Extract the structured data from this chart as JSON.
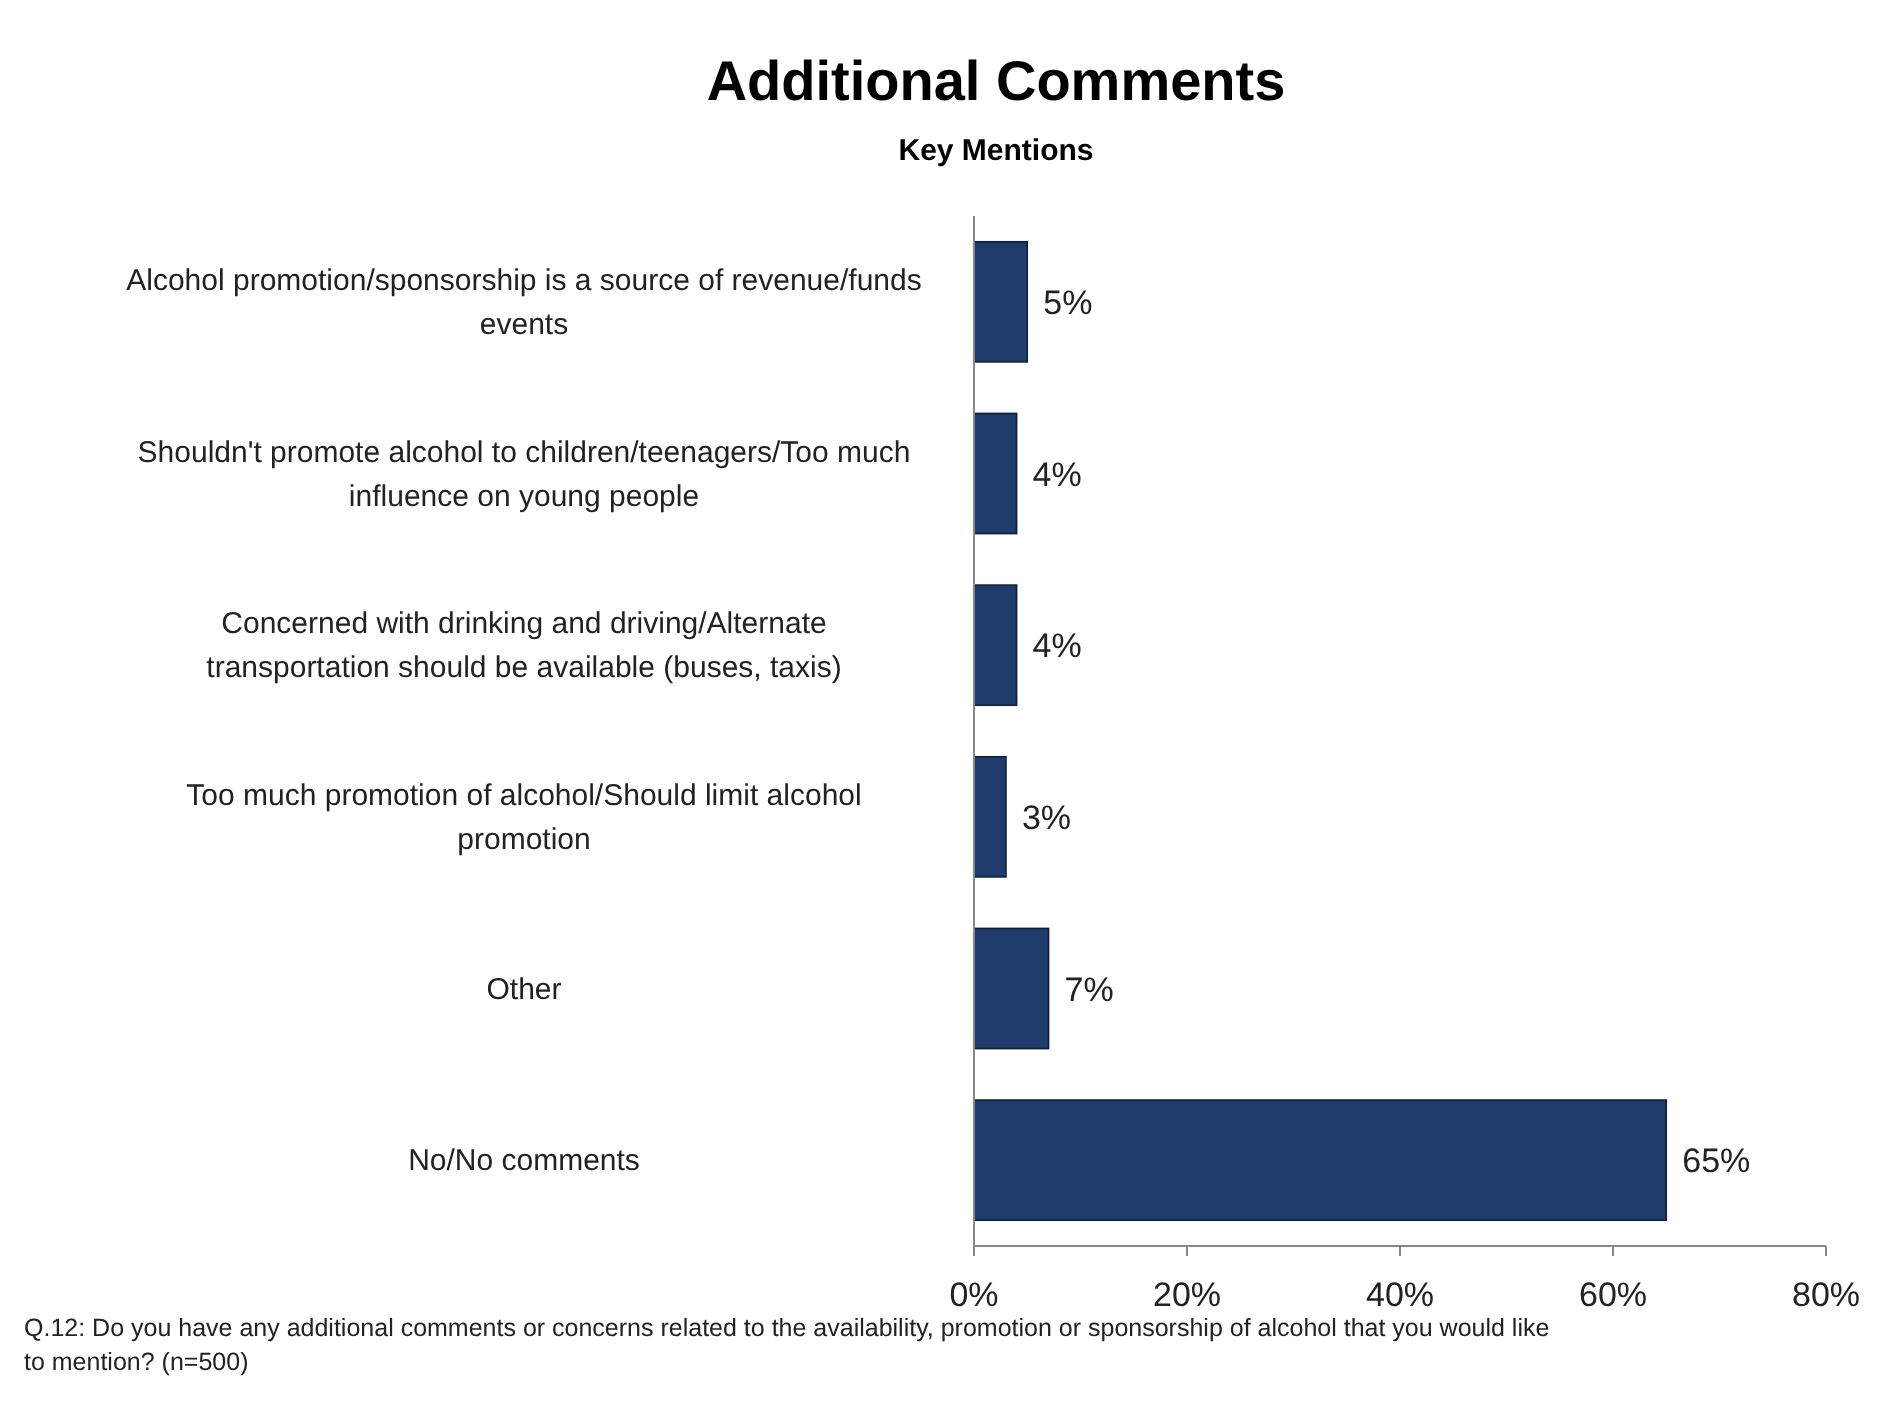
{
  "chart_data": {
    "type": "bar",
    "orientation": "horizontal",
    "title": "Additional Comments",
    "subtitle": "Key Mentions",
    "categories": [
      "Alcohol promotion/sponsorship is a source of revenue/funds events",
      "Shouldn't promote alcohol to children/teenagers/Too much influence on young people",
      "Concerned with drinking and driving/Alternate transportation should be available (buses, taxis)",
      "Too much promotion of alcohol/Should limit alcohol promotion",
      "Other",
      "No/No comments"
    ],
    "values": [
      5,
      4,
      4,
      3,
      7,
      65
    ],
    "value_labels": [
      "5%",
      "4%",
      "4%",
      "3%",
      "7%",
      "65%"
    ],
    "color": "#1f3b6b",
    "xlim": [
      0,
      80
    ],
    "xticks": [
      {
        "value": 0,
        "label": "0%"
      },
      {
        "value": 20,
        "label": "20%"
      },
      {
        "value": 40,
        "label": "40%"
      },
      {
        "value": 60,
        "label": "60%"
      },
      {
        "value": 80,
        "label": "80%"
      }
    ],
    "grid": false,
    "annotations": [
      "Q.12: Do you have any additional comments or concerns related to the availability, promotion or sponsorship of alcohol that you would like to mention? (n=500)"
    ]
  }
}
